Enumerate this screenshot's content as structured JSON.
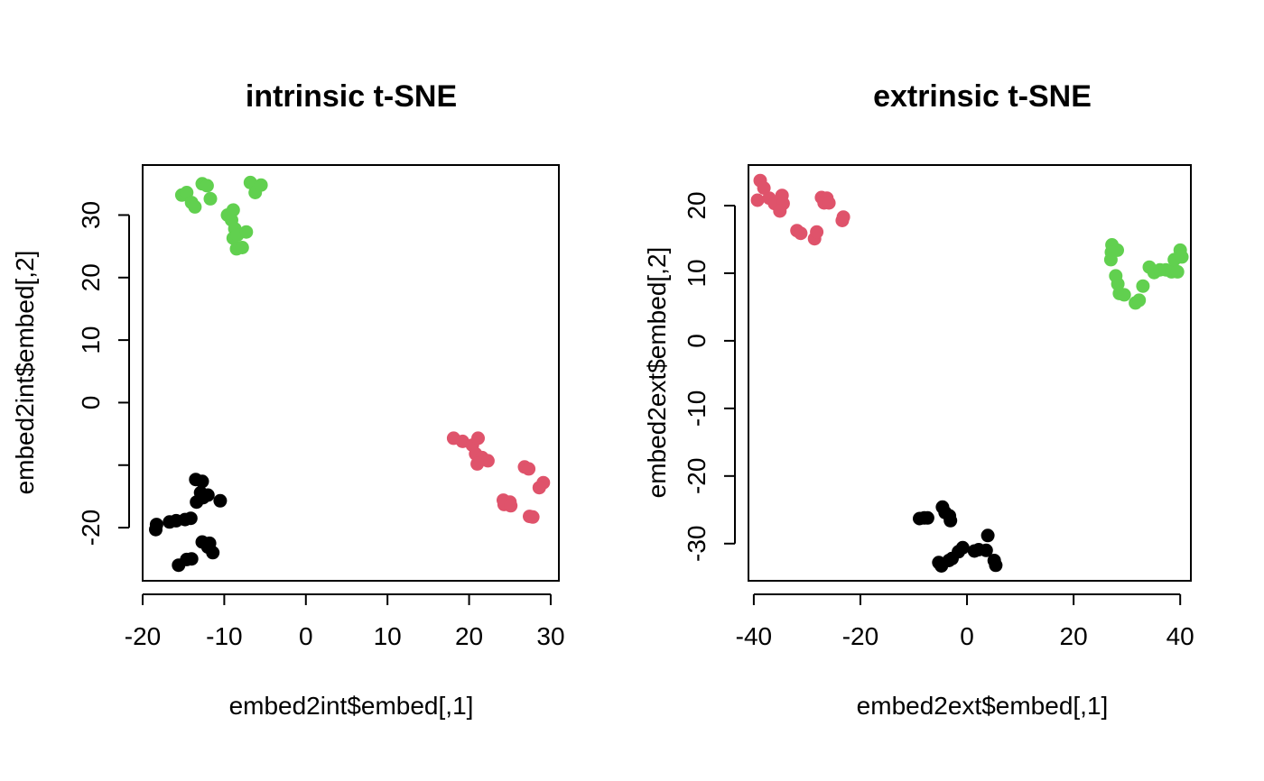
{
  "colors": {
    "cluster_1": "#000000",
    "cluster_2": "#DF536B",
    "cluster_3": "#61D04F"
  },
  "chart_data": [
    {
      "type": "scatter",
      "title": "intrinsic t-SNE",
      "xlabel": "embed2int$embed[,1]",
      "ylabel": "embed2int$embed[,2]",
      "xlim": [
        -20,
        31
      ],
      "ylim": [
        -28.5,
        38
      ],
      "xticks": [
        -20,
        -10,
        0,
        10,
        20,
        30
      ],
      "xtick_labels": [
        "-20",
        "-10",
        "0",
        "10",
        "20",
        "30"
      ],
      "yticks": [
        -20,
        -10,
        0,
        10,
        20,
        30
      ],
      "ytick_labels": [
        "-20",
        "",
        "0",
        "10",
        "20",
        "30"
      ],
      "grid": false,
      "series": [
        {
          "color_key": "cluster_1",
          "points": [
            [
              -18.4,
              -20.3
            ],
            [
              -18.3,
              -19.5
            ],
            [
              -16.7,
              -19.1
            ],
            [
              -15.9,
              -18.9
            ],
            [
              -14.8,
              -18.7
            ],
            [
              -14.1,
              -18.5
            ],
            [
              -13.4,
              -15.9
            ],
            [
              -12.6,
              -15.2
            ],
            [
              -12.9,
              -14.4
            ],
            [
              -12.0,
              -14.8
            ],
            [
              -13.5,
              -12.3
            ],
            [
              -12.7,
              -12.6
            ],
            [
              -10.5,
              -15.7
            ],
            [
              -12.7,
              -22.3
            ],
            [
              -12.0,
              -23.1
            ],
            [
              -11.8,
              -22.5
            ],
            [
              -11.4,
              -24.0
            ],
            [
              -14.6,
              -25.1
            ],
            [
              -14.0,
              -25.0
            ],
            [
              -15.6,
              -26.0
            ]
          ]
        },
        {
          "color_key": "cluster_2",
          "points": [
            [
              18.1,
              -5.7
            ],
            [
              19.2,
              -6.2
            ],
            [
              20.4,
              -6.8
            ],
            [
              21.1,
              -5.7
            ],
            [
              20.8,
              -8.2
            ],
            [
              21.6,
              -8.8
            ],
            [
              22.3,
              -9.3
            ],
            [
              21.0,
              -9.8
            ],
            [
              26.8,
              -10.3
            ],
            [
              27.3,
              -10.6
            ],
            [
              29.1,
              -12.8
            ],
            [
              28.6,
              -13.6
            ],
            [
              24.2,
              -15.6
            ],
            [
              25.0,
              -15.9
            ],
            [
              24.3,
              -16.3
            ],
            [
              25.1,
              -16.5
            ],
            [
              27.4,
              -18.2
            ],
            [
              27.8,
              -18.3
            ]
          ]
        },
        {
          "color_key": "cluster_3",
          "points": [
            [
              -15.2,
              33.2
            ],
            [
              -14.6,
              33.6
            ],
            [
              -14.0,
              32.0
            ],
            [
              -13.6,
              31.3
            ],
            [
              -11.7,
              32.6
            ],
            [
              -12.7,
              35.0
            ],
            [
              -12.1,
              34.7
            ],
            [
              -6.8,
              35.2
            ],
            [
              -6.2,
              33.6
            ],
            [
              -5.5,
              34.8
            ],
            [
              -9.6,
              30.0
            ],
            [
              -8.9,
              30.8
            ],
            [
              -9.1,
              29.2
            ],
            [
              -8.7,
              27.8
            ],
            [
              -8.9,
              26.3
            ],
            [
              -8.4,
              26.8
            ],
            [
              -7.3,
              27.3
            ],
            [
              -8.5,
              24.6
            ],
            [
              -7.8,
              24.8
            ]
          ]
        }
      ]
    },
    {
      "type": "scatter",
      "title": "extrinsic t-SNE",
      "xlabel": "embed2ext$embed[,1]",
      "ylabel": "embed2ext$embed[,2]",
      "xlim": [
        -41,
        42
      ],
      "ylim": [
        -35.5,
        26
      ],
      "xticks": [
        -40,
        -20,
        0,
        20,
        40
      ],
      "xtick_labels": [
        "-40",
        "-20",
        "0",
        "20",
        "40"
      ],
      "yticks": [
        -30,
        -20,
        -10,
        0,
        10,
        20
      ],
      "ytick_labels": [
        "-30",
        "-20",
        "-10",
        "0",
        "10",
        "20"
      ],
      "grid": false,
      "series": [
        {
          "color_key": "cluster_1",
          "points": [
            [
              -8.9,
              -26.3
            ],
            [
              -8.0,
              -26.2
            ],
            [
              -7.4,
              -26.2
            ],
            [
              -4.6,
              -24.6
            ],
            [
              -4.1,
              -25.4
            ],
            [
              -3.3,
              -25.9
            ],
            [
              -3.1,
              -26.6
            ],
            [
              -1.6,
              -31.2
            ],
            [
              -0.8,
              -30.6
            ],
            [
              -2.8,
              -32.2
            ],
            [
              -3.4,
              -32.5
            ],
            [
              -5.3,
              -32.8
            ],
            [
              -4.8,
              -33.3
            ],
            [
              2.2,
              -30.9
            ],
            [
              1.4,
              -31.1
            ],
            [
              3.6,
              -31.0
            ],
            [
              3.9,
              -28.8
            ],
            [
              5.1,
              -32.5
            ],
            [
              5.4,
              -33.2
            ]
          ]
        },
        {
          "color_key": "cluster_2",
          "points": [
            [
              -38.8,
              23.7
            ],
            [
              -38.1,
              22.6
            ],
            [
              -39.3,
              20.8
            ],
            [
              -37.1,
              21.1
            ],
            [
              -36.1,
              20.3
            ],
            [
              -34.7,
              21.5
            ],
            [
              -34.5,
              20.3
            ],
            [
              -35.1,
              19.2
            ],
            [
              -31.9,
              16.3
            ],
            [
              -31.2,
              15.9
            ],
            [
              -28.6,
              15.1
            ],
            [
              -28.2,
              16.1
            ],
            [
              -27.3,
              21.2
            ],
            [
              -26.3,
              21.1
            ],
            [
              -26.8,
              20.4
            ],
            [
              -25.9,
              20.4
            ],
            [
              -23.2,
              18.3
            ],
            [
              -23.4,
              17.8
            ]
          ]
        },
        {
          "color_key": "cluster_3",
          "points": [
            [
              27.2,
              14.2
            ],
            [
              28.2,
              13.4
            ],
            [
              27.1,
              13.1
            ],
            [
              27.0,
              12.0
            ],
            [
              27.9,
              9.6
            ],
            [
              28.3,
              8.4
            ],
            [
              28.6,
              7.0
            ],
            [
              29.5,
              6.8
            ],
            [
              31.6,
              5.6
            ],
            [
              32.3,
              6.0
            ],
            [
              33.0,
              8.1
            ],
            [
              34.2,
              10.9
            ],
            [
              35.1,
              10.1
            ],
            [
              36.2,
              10.5
            ],
            [
              37.3,
              10.5
            ],
            [
              38.4,
              10.2
            ],
            [
              38.9,
              12.0
            ],
            [
              39.5,
              10.2
            ],
            [
              40.0,
              13.4
            ],
            [
              40.3,
              12.4
            ]
          ]
        }
      ]
    }
  ]
}
